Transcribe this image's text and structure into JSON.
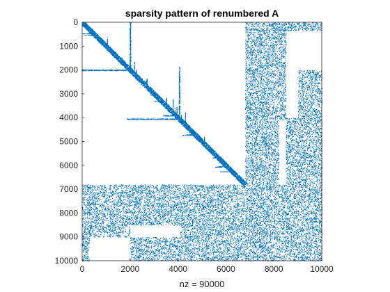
{
  "chart_data": {
    "type": "scatter",
    "title": "sparsity pattern of renumbered A",
    "xlabel": "nz = 90000",
    "ylabel": "",
    "xlim": [
      0,
      10000
    ],
    "ylim": [
      0,
      10000
    ],
    "y_reversed": true,
    "x_ticks": [
      "0",
      "2000",
      "4000",
      "6000",
      "8000",
      "10000"
    ],
    "y_ticks": [
      "0",
      "1000",
      "2000",
      "3000",
      "4000",
      "5000",
      "6000",
      "7000",
      "8000",
      "9000",
      "10000"
    ],
    "marker_color": "#0072BD",
    "grid": false,
    "box": true,
    "dense_blocks": [
      {
        "cols": [
          6800,
          10000
        ],
        "rows": [
          300,
          6800
        ]
      },
      {
        "cols": [
          300,
          6800
        ],
        "rows": [
          6800,
          10000
        ]
      },
      {
        "cols": [
          6800,
          10000
        ],
        "rows": [
          6800,
          10000
        ]
      }
    ],
    "empty_blocks": [
      {
        "cols": [
          8500,
          9000
        ],
        "rows": [
          300,
          2000
        ]
      },
      {
        "cols": [
          9000,
          10000
        ],
        "rows": [
          300,
          2000
        ]
      },
      {
        "cols": [
          8500,
          9000
        ],
        "rows": [
          2000,
          4000
        ]
      },
      {
        "cols": [
          8200,
          8500
        ],
        "rows": [
          4100,
          6800
        ]
      },
      {
        "cols": [
          2000,
          4100
        ],
        "rows": [
          8500,
          9000
        ]
      },
      {
        "cols": [
          300,
          2000
        ],
        "rows": [
          9000,
          10000
        ]
      }
    ],
    "diagonal_band": {
      "from": 0,
      "to": 6800
    },
    "hub_rows": [
      2000,
      4050
    ],
    "hub_cols": [
      2000,
      4050
    ]
  }
}
